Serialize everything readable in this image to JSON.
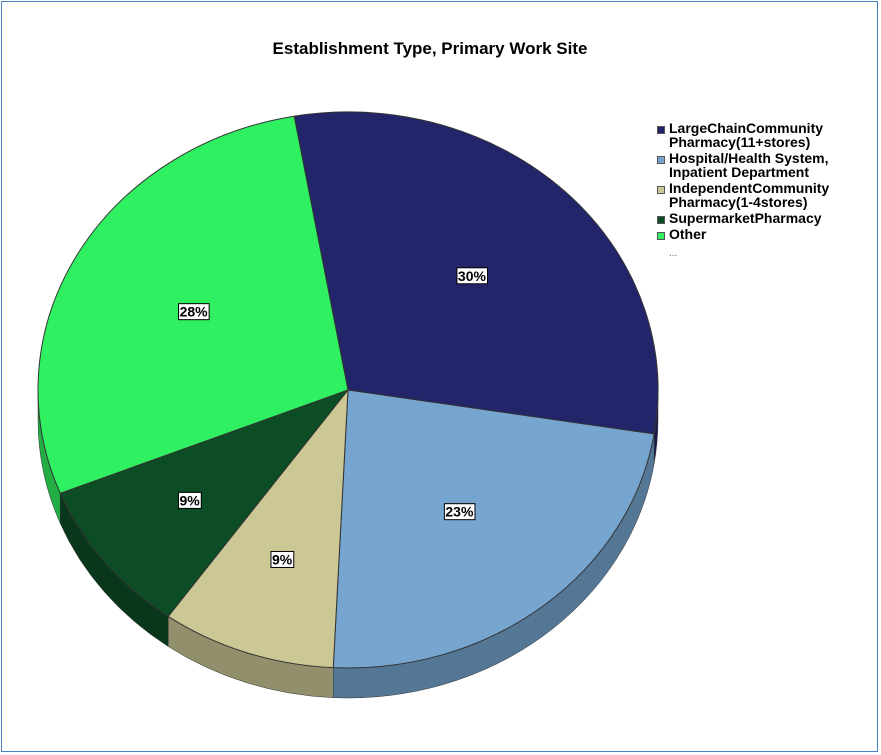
{
  "chart_data": {
    "type": "pie",
    "title": "Establishment Type, Primary Work Site",
    "categories": [
      "LargeChainCommunity\nPharmacy(11+stores)",
      "Hospital/Health System,\nInpatient Department",
      "IndependentCommunity\nPharmacy(1-4stores)",
      "SupermarketPharmacy",
      "Other"
    ],
    "values": [
      30,
      23,
      9,
      9,
      28
    ],
    "value_labels": [
      "30%",
      "23%",
      "9%",
      "9%",
      "28%"
    ],
    "colors": [
      "#23256b",
      "#76a5d0",
      "#cbc896",
      "#0d4d25",
      "#2ff060"
    ],
    "legend": "right",
    "legend_more": "..."
  }
}
